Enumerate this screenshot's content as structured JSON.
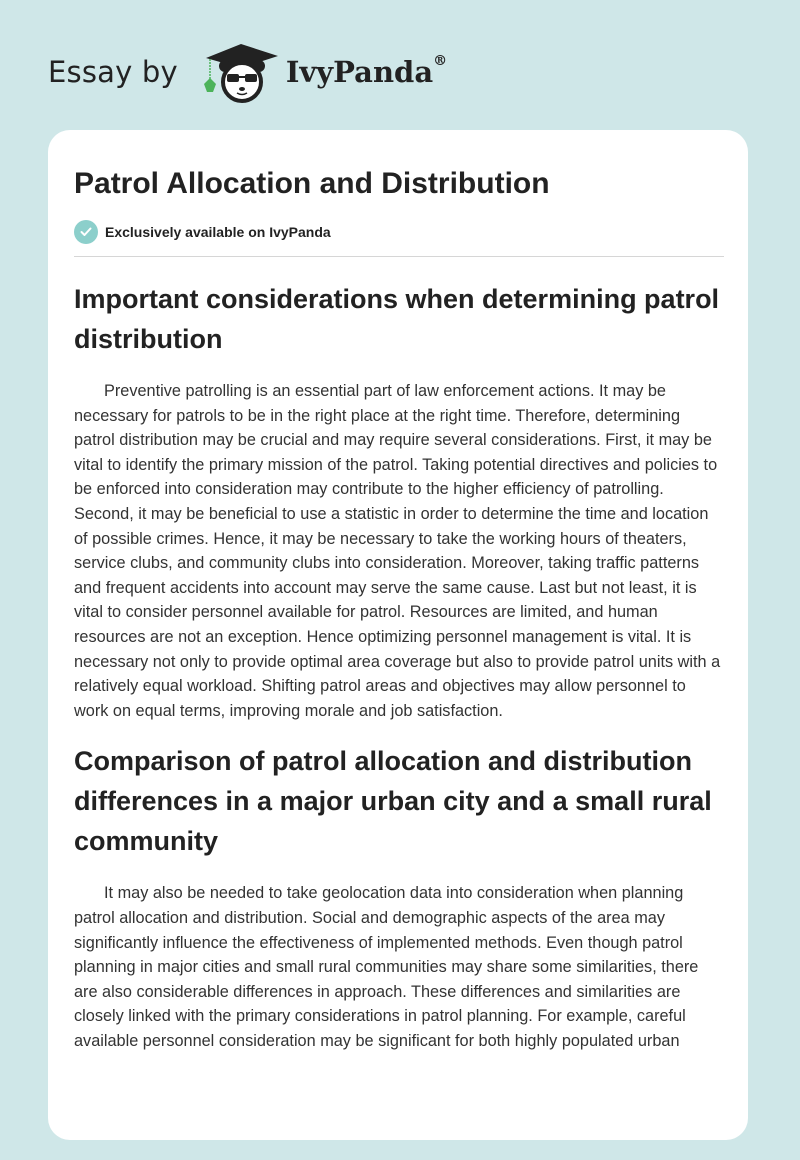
{
  "brand": {
    "prefix": "Essay by",
    "name": "IvyPanda",
    "registered": "®"
  },
  "article": {
    "title": "Patrol Allocation and Distribution",
    "badge": "Exclusively available on IvyPanda",
    "sections": [
      {
        "heading": "Important considerations when determining patrol distribution",
        "paragraph": "Preventive patrolling is an essential part of law enforcement actions. It may be necessary for patrols to be in the right place at the right time. Therefore, determining patrol distribution may be crucial and may require several considerations. First, it may be vital to identify the primary mission of the patrol. Taking potential directives and policies to be enforced into consideration may contribute to the higher efficiency of patrolling. Second, it may be beneficial to use a statistic in order to determine the time and location of possible crimes. Hence, it may be necessary to take the working hours of theaters, service clubs, and community clubs into consideration. Moreover, taking traffic patterns and frequent accidents into account may serve the same cause. Last but not least, it is vital to consider personnel available for patrol. Resources are limited, and human resources are not an exception. Hence optimizing personnel management is vital. It is necessary not only to provide optimal area coverage but also to provide patrol units with a relatively equal workload. Shifting patrol areas and objectives may allow personnel to work on equal terms, improving morale and job satisfaction."
      },
      {
        "heading": "Comparison of patrol allocation and distribution differences in a major urban city and a small rural community",
        "paragraph": "It may also be needed to take geolocation data into consideration when planning patrol allocation and distribution. Social and demographic aspects of the area may significantly influence the effectiveness of implemented methods. Even though patrol planning in major cities and small rural communities may share some similarities, there are also considerable differences in approach. These differences and similarities are closely linked with the primary considerations in patrol planning. For example, careful available personnel consideration may be significant for both highly populated urban"
      }
    ]
  },
  "colors": {
    "background": "#cfe7e8",
    "badge": "#8ccfcb",
    "leaf": "#4cb35a"
  }
}
